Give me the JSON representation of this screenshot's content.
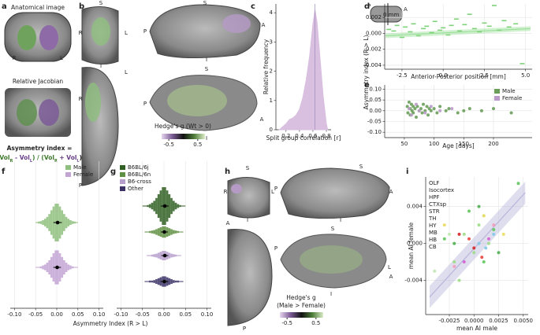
{
  "panel_letters": [
    "a",
    "b",
    "c",
    "d",
    "e",
    "f",
    "g",
    "h",
    "i"
  ],
  "panel_a": {
    "anatomical": "Anatomical image",
    "R": "R",
    "L": "L",
    "jacobian": "Relative Jacobian",
    "index_title": "Asymmetry index =",
    "formula": [
      "(Vol",
      "R",
      " - Vol",
      "L",
      ") / (Vol",
      "R",
      " + Vol",
      "L",
      ")"
    ]
  },
  "panel_b": {
    "orientation": [
      "S",
      "R",
      "L",
      "I",
      "S",
      "P",
      "A",
      "I",
      "R",
      "L",
      "P",
      "S",
      "P",
      "A",
      "I"
    ],
    "colorbar": {
      "title": "Hedge's g (Wt > 0)",
      "lim": [
        -0.75,
        0.75
      ],
      "ticks": [
        -0.5,
        0.5
      ]
    }
  },
  "panel_d_inset": {
    "P": "P",
    "A": "A",
    "plane": "0 mm"
  },
  "panel_h": {
    "orientation": [
      "S",
      "R",
      "L",
      "I",
      "S",
      "P",
      "A",
      "I",
      "A",
      "P",
      "S",
      "P",
      "L",
      "A",
      "I"
    ],
    "colorbar": {
      "title": [
        "Hedge's g",
        "(Male > Female)"
      ],
      "lim": [
        -0.75,
        0.75
      ],
      "ticks": [
        -0.5,
        0.5
      ]
    }
  },
  "chart_data": [
    {
      "type": "area",
      "xlabel": "Split group correlation [r]",
      "ylabel": "Relative frequency",
      "x": [
        0.1,
        0.15,
        0.2,
        0.25,
        0.3,
        0.35,
        0.4,
        0.45,
        0.5,
        0.55,
        0.6,
        0.63,
        0.66,
        0.7,
        0.75,
        0.8,
        0.82
      ],
      "values": [
        0,
        0.1,
        0.2,
        0.35,
        0.4,
        0.5,
        0.7,
        1.1,
        1.7,
        2.5,
        3.6,
        4.1,
        3.7,
        2.6,
        1.2,
        0.2,
        0
      ],
      "color": "#d9bfe0",
      "vline": 0.63,
      "xlim": [
        0.05,
        0.87
      ],
      "ylim": [
        0,
        4.3
      ],
      "xticks": [
        0.2,
        0.4,
        0.6,
        0.8
      ],
      "yticks": [
        0,
        1,
        2,
        3,
        4
      ]
    },
    {
      "type": "scatter",
      "marker": "dash",
      "xlabel": "Anterior-Posterior position [mm]",
      "ylabel": "Asymmetry index (R > L)",
      "grid": true,
      "xlim": [
        -3.55,
        5.4
      ],
      "ylim": [
        -0.0045,
        0.0037
      ],
      "xticks": [
        -2.5,
        {
          "value": 0,
          "label": "0.0"
        },
        2.5,
        {
          "value": 5,
          "label": "5.0"
        }
      ],
      "yticks": [
        -0.004,
        -0.002,
        {
          "value": 0,
          "label": "0.000"
        },
        0.002
      ],
      "series": [
        {
          "name": "AP",
          "color": "#7fd17a",
          "x": [
            -3.3,
            -3,
            -2.8,
            -2.5,
            -2.3,
            -2,
            -1.8,
            -1.5,
            -1.2,
            -1,
            -0.7,
            -0.5,
            -0.2,
            0,
            0.3,
            0.5,
            0.8,
            1,
            1.3,
            1.6,
            1.9,
            2.2,
            2.5,
            2.8,
            3.1,
            3.4,
            3.7,
            4,
            4.4,
            4.8
          ],
          "values": [
            0.0005,
            0.0003,
            0.001,
            -0.0005,
            0.0008,
            0.0002,
            0.0012,
            -0.0003,
            0.0006,
            0.0009,
            0.0001,
            0.0015,
            0.0004,
            0.0007,
            -0.0002,
            0.001,
            0.0018,
            0.0003,
            0.0011,
            0.0024,
            0.0006,
            0.0002,
            0.0013,
            0.0009,
            0.0035,
            0.0004,
            0.0016,
            0.0008,
            0.0012,
            -0.0038
          ]
        }
      ],
      "fit_x": [
        -3.5,
        5.3
      ],
      "fit_y": [
        -0.0003,
        0.0006
      ],
      "fit_band": 0.0003,
      "fit_color": "#9be09a"
    },
    {
      "type": "scatter",
      "marker": "dot",
      "xlabel": "Age [days]",
      "grid": true,
      "legend": "upper right",
      "xlim": [
        17,
        265
      ],
      "ylim": [
        -0.125,
        0.12
      ],
      "xticks": [
        50,
        100,
        150,
        200
      ],
      "yticks": [
        {
          "value": -0.1,
          "label": "-0.10"
        },
        -0.05,
        {
          "value": 0,
          "label": "0.00"
        },
        0.05,
        {
          "value": 0.1,
          "label": "0.10"
        }
      ],
      "series": [
        {
          "name": "Male",
          "color": "#6a9e5a",
          "x": [
            55,
            56,
            58,
            60,
            60,
            62,
            63,
            65,
            65,
            68,
            70,
            72,
            75,
            78,
            80,
            82,
            85,
            88,
            90,
            92,
            95,
            100,
            105,
            110,
            120,
            125,
            140,
            150,
            160,
            180,
            200,
            230
          ],
          "values": [
            0.02,
            -0.01,
            0.04,
            0.01,
            -0.02,
            0.03,
            0,
            -0.01,
            0.02,
            0.01,
            -0.03,
            0.02,
            0,
            0.01,
            -0.01,
            0.03,
            0,
            0.02,
            -0.02,
            0.01,
            0,
            0.01,
            -0.01,
            0.02,
            0,
            0.01,
            -0.01,
            0,
            0.01,
            0,
            0.01,
            -0.01
          ]
        },
        {
          "name": "Female",
          "color": "#b99ac9",
          "x": [
            58,
            62,
            70,
            75,
            85,
            95,
            110,
            130
          ],
          "values": [
            0.01,
            -0.02,
            0.03,
            0,
            -0.01,
            0.02,
            0,
            0.01
          ]
        }
      ]
    },
    {
      "type": "violin",
      "xlabel": "Asymmetry Index (R > L)",
      "grid": true,
      "legend": "upper right",
      "xlim": [
        -0.11,
        0.11
      ],
      "xticks": [
        {
          "value": -0.1,
          "label": "-0.10"
        },
        -0.05,
        {
          "value": 0,
          "label": "0.00"
        },
        0.05,
        {
          "value": 0.1,
          "label": "0.10"
        }
      ],
      "bins": [
        -0.05,
        -0.045,
        -0.04,
        -0.035,
        -0.03,
        -0.025,
        -0.02,
        -0.015,
        -0.01,
        -0.005,
        0,
        0.005,
        0.01,
        0.015,
        0.02,
        0.025,
        0.03,
        0.035,
        0.04,
        0.045,
        0.05
      ],
      "series": [
        {
          "name": "Male",
          "color": "#8fbf7e",
          "counts": [
            1,
            2,
            3,
            5,
            8,
            12,
            18,
            26,
            34,
            40,
            40,
            34,
            26,
            18,
            12,
            8,
            5,
            3,
            2,
            1
          ],
          "mean": 0.002,
          "error": 0.01
        },
        {
          "name": "Female",
          "color": "#c3a5d3",
          "counts": [
            1,
            1,
            2,
            4,
            6,
            10,
            15,
            22,
            30,
            36,
            36,
            30,
            22,
            15,
            10,
            6,
            4,
            2,
            1,
            1
          ],
          "mean": 0.001,
          "error": 0.009
        }
      ]
    },
    {
      "type": "violin",
      "grid": true,
      "legend": "upper left",
      "xlim": [
        -0.11,
        0.11
      ],
      "xticks": [
        {
          "value": -0.1,
          "label": "-0.10"
        },
        -0.05,
        {
          "value": 0,
          "label": "0.00"
        },
        0.05,
        {
          "value": 0.1,
          "label": "0.10"
        }
      ],
      "bins": [
        -0.05,
        -0.045,
        -0.04,
        -0.035,
        -0.03,
        -0.025,
        -0.02,
        -0.015,
        -0.01,
        -0.005,
        0,
        0.005,
        0.01,
        0.015,
        0.02,
        0.025,
        0.03,
        0.035,
        0.04,
        0.045,
        0.05
      ],
      "series": [
        {
          "name": "B6BL/6j",
          "color": "#2f5f22",
          "counts": [
            1,
            1,
            2,
            4,
            7,
            11,
            17,
            25,
            33,
            40,
            40,
            33,
            25,
            17,
            11,
            7,
            4,
            2,
            1,
            1
          ],
          "mean": 0.002,
          "error": 0.009
        },
        {
          "name": "B6BL/6n",
          "color": "#5f8f42",
          "counts": [
            0,
            1,
            1,
            2,
            3,
            4,
            6,
            8,
            10,
            12,
            12,
            10,
            8,
            6,
            4,
            3,
            2,
            1,
            1,
            0
          ],
          "mean": 0.001,
          "error": 0.008
        },
        {
          "name": "B6-cross",
          "color": "#b69dcc",
          "counts": [
            0,
            0,
            1,
            1,
            2,
            3,
            4,
            6,
            8,
            10,
            10,
            8,
            6,
            4,
            3,
            2,
            1,
            1,
            0,
            0
          ],
          "mean": 0.002,
          "error": 0.008
        },
        {
          "name": "Other",
          "color": "#3c3266",
          "counts": [
            0,
            1,
            1,
            2,
            2,
            3,
            5,
            7,
            9,
            11,
            11,
            9,
            7,
            5,
            3,
            2,
            2,
            1,
            1,
            0
          ],
          "mean": 0.001,
          "error": 0.009
        }
      ]
    },
    {
      "type": "scatter",
      "marker": "dot",
      "xlabel": "mean AI male",
      "ylabel": "mean AI female",
      "grid": true,
      "legend": "upper left",
      "legend_style": "text",
      "xlim": [
        -0.0049,
        0.0055
      ],
      "ylim": [
        -0.0077,
        0.0072
      ],
      "xticks": [
        -0.0025,
        {
          "value": 0,
          "label": "0.0000"
        },
        0.0025,
        {
          "value": 0.005,
          "label": "0.0050"
        }
      ],
      "yticks": [
        -0.004,
        {
          "value": 0,
          "label": "0.000"
        },
        0.004
      ],
      "fit_x": [
        -0.0045,
        0.0052
      ],
      "fit_y": [
        -0.0058,
        0.0055
      ],
      "fit_band": 0.0012,
      "fit_color": "#b8b5da",
      "series": [
        {
          "name": "OLF",
          "color": "#bfe8b0",
          "x": [
            -0.004,
            -0.0025,
            0.001
          ],
          "values": [
            -0.003,
            0.001,
            0.003
          ]
        },
        {
          "name": "Isocortex",
          "color": "#9edc88",
          "x": [
            -0.002,
            -0.001,
            0,
            0.0005,
            0.0015,
            -0.0015
          ],
          "values": [
            -0.002,
            0.001,
            -0.001,
            0.002,
            0,
            -0.004
          ]
        },
        {
          "name": "HPF",
          "color": "#62c75d",
          "x": [
            -0.003,
            -0.0005,
            0.001,
            0.002,
            0.0045
          ],
          "values": [
            0.0005,
            0.0035,
            -0.002,
            0.0015,
            0.0065
          ]
        },
        {
          "name": "CTXsp",
          "color": "#4caf50",
          "x": [
            -0.002,
            0.0005,
            0.0025
          ],
          "values": [
            0,
            0.004,
            -0.001
          ]
        },
        {
          "name": "STR",
          "color": "#82c9e6",
          "x": [
            0.0005,
            0.0012,
            0.002
          ],
          "values": [
            0,
            -0.0005,
            0.001
          ]
        },
        {
          "name": "TH",
          "color": "#d62728",
          "x": [
            -0.0015,
            0
          ],
          "values": [
            0.001,
            -0.0005
          ]
        },
        {
          "name": "HY",
          "color": "#e8473f",
          "x": [
            -0.0005,
            0.0008
          ],
          "values": [
            0.0005,
            -0.0015
          ]
        },
        {
          "name": "MB",
          "color": "#d45fd0",
          "x": [
            -0.001,
            0.0015
          ],
          "values": [
            -0.002,
            0.0005
          ]
        },
        {
          "name": "HB",
          "color": "#f29bb8",
          "x": [
            -0.002,
            0.002
          ],
          "values": [
            -0.0025,
            0.002
          ]
        },
        {
          "name": "CB",
          "color": "#e9dd62",
          "x": [
            -0.003,
            0.003,
            0.001
          ],
          "values": [
            0.002,
            0.001,
            0.003
          ]
        }
      ]
    }
  ]
}
